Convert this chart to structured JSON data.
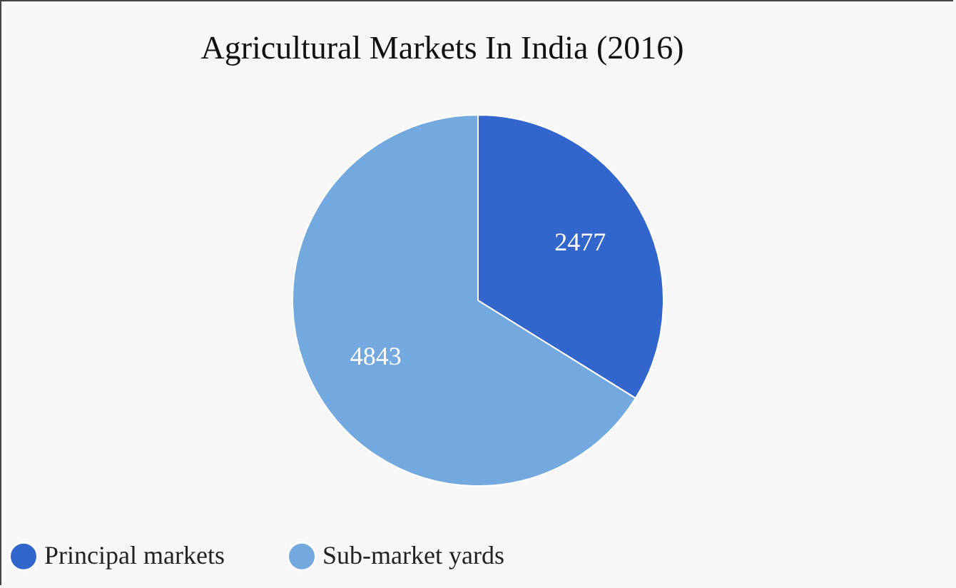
{
  "chart_data": {
    "type": "pie",
    "title": "Agricultural Markets In India (2016)",
    "categories": [
      "Principal markets",
      "Sub-market yards"
    ],
    "values": [
      2477,
      4843
    ],
    "colors": [
      "#3366cc",
      "#73a9de"
    ],
    "data_labels": true,
    "legend": "bottom"
  }
}
